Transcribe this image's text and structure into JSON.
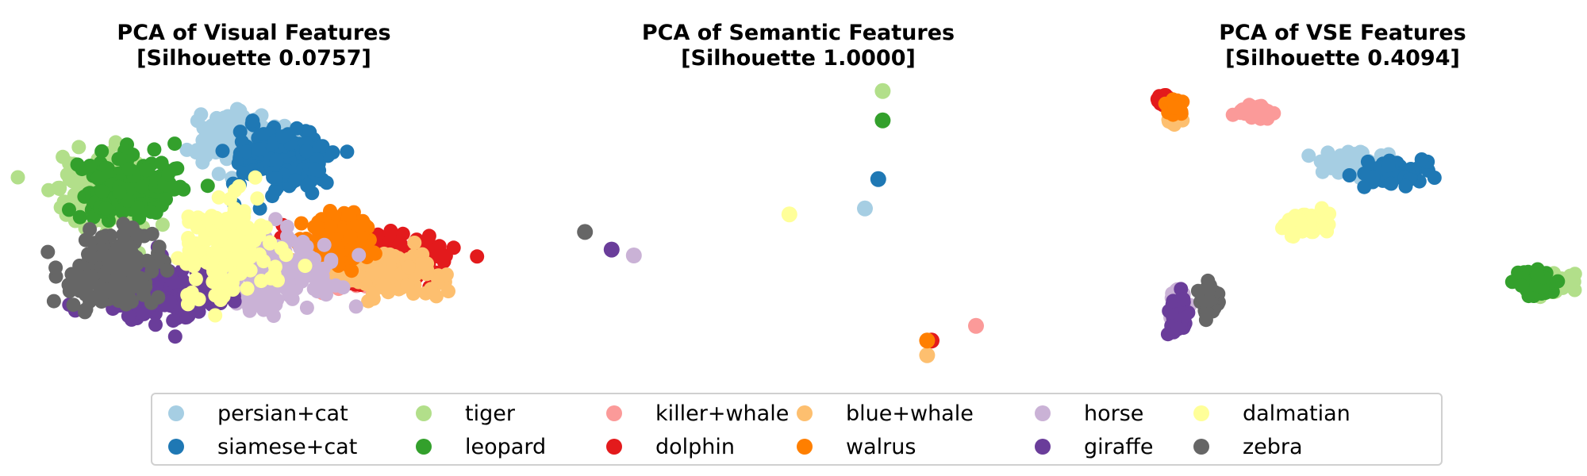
{
  "chart_data": [
    {
      "type": "scatter",
      "title": "PCA of Visual Features",
      "subtitle": "[Silhouette 0.0757]",
      "axes_visible": false,
      "xlim": [
        -5,
        5
      ],
      "ylim": [
        -5,
        5
      ],
      "series": [
        {
          "name": "persian+cat",
          "center": [
            -0.2,
            3.0
          ],
          "spread": [
            0.9,
            0.8
          ]
        },
        {
          "name": "siamese+cat",
          "center": [
            0.6,
            2.3
          ],
          "spread": [
            1.0,
            1.0
          ]
        },
        {
          "name": "tiger",
          "center": [
            -3.4,
            1.2
          ],
          "spread": [
            1.0,
            1.2
          ]
        },
        {
          "name": "leopard",
          "center": [
            -2.8,
            1.4
          ],
          "spread": [
            1.0,
            1.0
          ]
        },
        {
          "name": "killer+whale",
          "center": [
            2.3,
            -1.4
          ],
          "spread": [
            1.2,
            0.7
          ]
        },
        {
          "name": "dolphin",
          "center": [
            2.8,
            -1.1
          ],
          "spread": [
            1.4,
            0.9
          ]
        },
        {
          "name": "blue+whale",
          "center": [
            3.0,
            -1.6
          ],
          "spread": [
            1.2,
            0.6
          ]
        },
        {
          "name": "walrus",
          "center": [
            1.9,
            -0.4
          ],
          "spread": [
            0.7,
            0.7
          ]
        },
        {
          "name": "horse",
          "center": [
            0.6,
            -1.6
          ],
          "spread": [
            1.2,
            1.0
          ]
        },
        {
          "name": "giraffe",
          "center": [
            -2.2,
            -2.2
          ],
          "spread": [
            1.2,
            0.9
          ]
        },
        {
          "name": "dalmatian",
          "center": [
            -0.6,
            -0.9
          ],
          "spread": [
            0.9,
            1.4
          ]
        },
        {
          "name": "zebra",
          "center": [
            -3.2,
            -1.5
          ],
          "spread": [
            1.1,
            1.0
          ]
        }
      ]
    },
    {
      "type": "scatter",
      "title": "PCA of Semantic Features",
      "subtitle": "[Silhouette 1.0000]",
      "axes_visible": false,
      "xlim": [
        -5,
        5
      ],
      "ylim": [
        -5,
        5
      ],
      "series": [
        {
          "name": "persian+cat",
          "center": [
            1.5,
            0.6
          ],
          "spread": [
            0.02,
            0.02
          ]
        },
        {
          "name": "siamese+cat",
          "center": [
            1.8,
            1.6
          ],
          "spread": [
            0.02,
            0.02
          ]
        },
        {
          "name": "tiger",
          "center": [
            1.9,
            4.6
          ],
          "spread": [
            0.02,
            0.02
          ]
        },
        {
          "name": "leopard",
          "center": [
            1.9,
            3.6
          ],
          "spread": [
            0.02,
            0.02
          ]
        },
        {
          "name": "killer+whale",
          "center": [
            4.0,
            -3.4
          ],
          "spread": [
            0.02,
            0.02
          ]
        },
        {
          "name": "dolphin",
          "center": [
            3.0,
            -3.9
          ],
          "spread": [
            0.02,
            0.02
          ]
        },
        {
          "name": "blue+whale",
          "center": [
            2.9,
            -4.4
          ],
          "spread": [
            0.02,
            0.02
          ]
        },
        {
          "name": "walrus",
          "center": [
            2.9,
            -3.9
          ],
          "spread": [
            0.02,
            0.02
          ]
        },
        {
          "name": "horse",
          "center": [
            -3.7,
            -1.0
          ],
          "spread": [
            0.02,
            0.02
          ]
        },
        {
          "name": "giraffe",
          "center": [
            -4.2,
            -0.8
          ],
          "spread": [
            0.02,
            0.02
          ]
        },
        {
          "name": "dalmatian",
          "center": [
            -0.2,
            0.4
          ],
          "spread": [
            0.02,
            0.02
          ]
        },
        {
          "name": "zebra",
          "center": [
            -4.8,
            -0.2
          ],
          "spread": [
            0.02,
            0.02
          ]
        }
      ]
    },
    {
      "type": "scatter",
      "title": "PCA of VSE Features",
      "subtitle": "[Silhouette 0.4094]",
      "axes_visible": false,
      "xlim": [
        -5,
        5
      ],
      "ylim": [
        -5,
        5
      ],
      "series": [
        {
          "name": "persian+cat",
          "center": [
            0.3,
            2.2
          ],
          "spread": [
            0.7,
            0.35
          ]
        },
        {
          "name": "siamese+cat",
          "center": [
            1.2,
            1.8
          ],
          "spread": [
            0.65,
            0.35
          ]
        },
        {
          "name": "tiger",
          "center": [
            4.7,
            -1.9
          ],
          "spread": [
            0.45,
            0.35
          ]
        },
        {
          "name": "leopard",
          "center": [
            4.4,
            -1.9
          ],
          "spread": [
            0.45,
            0.35
          ]
        },
        {
          "name": "killer+whale",
          "center": [
            -2.0,
            3.9
          ],
          "spread": [
            0.35,
            0.18
          ]
        },
        {
          "name": "dolphin",
          "center": [
            -4.0,
            4.3
          ],
          "spread": [
            0.12,
            0.15
          ]
        },
        {
          "name": "blue+whale",
          "center": [
            -3.8,
            3.7
          ],
          "spread": [
            0.12,
            0.18
          ]
        },
        {
          "name": "walrus",
          "center": [
            -3.8,
            4.1
          ],
          "spread": [
            0.14,
            0.2
          ]
        },
        {
          "name": "horse",
          "center": [
            -3.7,
            -2.8
          ],
          "spread": [
            0.15,
            0.5
          ]
        },
        {
          "name": "giraffe",
          "center": [
            -3.7,
            -3.0
          ],
          "spread": [
            0.15,
            0.55
          ]
        },
        {
          "name": "dalmatian",
          "center": [
            -0.8,
            0.1
          ],
          "spread": [
            0.45,
            0.35
          ]
        },
        {
          "name": "zebra",
          "center": [
            -3.0,
            -2.5
          ],
          "spread": [
            0.15,
            0.45
          ]
        }
      ]
    }
  ],
  "legend": {
    "placement": "bottom",
    "columns": 6,
    "items": [
      {
        "label": "persian+cat",
        "color": "#a6cee3"
      },
      {
        "label": "siamese+cat",
        "color": "#1f78b4"
      },
      {
        "label": "tiger",
        "color": "#b2df8a"
      },
      {
        "label": "leopard",
        "color": "#33a02c"
      },
      {
        "label": "killer+whale",
        "color": "#fb9a99"
      },
      {
        "label": "dolphin",
        "color": "#e31a1c"
      },
      {
        "label": "blue+whale",
        "color": "#fdbf6f"
      },
      {
        "label": "walrus",
        "color": "#ff7f00"
      },
      {
        "label": "horse",
        "color": "#cab2d6"
      },
      {
        "label": "giraffe",
        "color": "#6a3d9a"
      },
      {
        "label": "dalmatian",
        "color": "#ffff99"
      },
      {
        "label": "zebra",
        "color": "#666666"
      }
    ]
  }
}
